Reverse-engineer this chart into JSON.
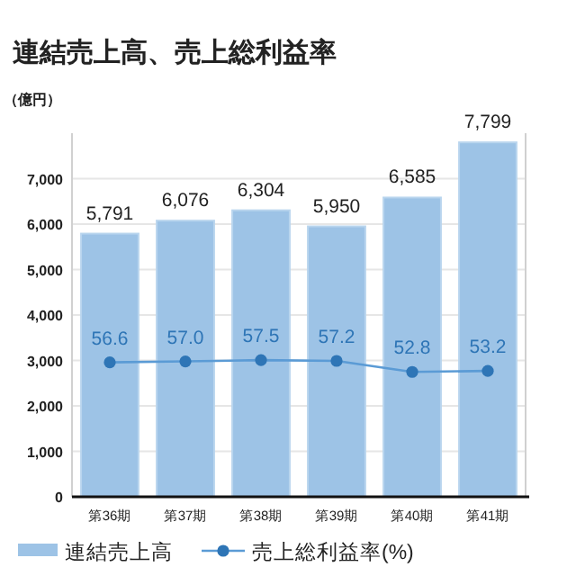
{
  "chart_data": {
    "type": "bar",
    "title": "連結売上高、売上総利益率",
    "ylabel": "（億円）",
    "categories": [
      "第36期",
      "第37期",
      "第38期",
      "第39期",
      "第40期",
      "第41期"
    ],
    "series": [
      {
        "name": "連結売上高",
        "color": "#9dc3e6",
        "values": [
          5791,
          6076,
          6304,
          5950,
          6585,
          7799
        ],
        "value_labels": [
          "5,791",
          "6,076",
          "6,304",
          "5,950",
          "6,585",
          "7,799"
        ]
      },
      {
        "name": "売上総利益率(%)",
        "type": "line",
        "axis": "y2",
        "color": "#2e75b6",
        "marker": "circle",
        "values": [
          56.6,
          57.0,
          57.5,
          57.2,
          52.8,
          53.2
        ],
        "value_labels": [
          "56.6",
          "57.0",
          "57.5",
          "57.2",
          "52.8",
          "53.2"
        ]
      }
    ],
    "ylim": [
      0,
      8000
    ],
    "yticks": [
      {
        "value": 0,
        "label": "0"
      },
      {
        "value": 1000,
        "label": "1,000"
      },
      {
        "value": 2000,
        "label": "2,000"
      },
      {
        "value": 3000,
        "label": "3,000"
      },
      {
        "value": 4000,
        "label": "4,000"
      },
      {
        "value": 5000,
        "label": "5,000"
      },
      {
        "value": 6000,
        "label": "6,000"
      },
      {
        "value": 7000,
        "label": "7,000"
      }
    ],
    "y2lim": [
      3,
      148
    ],
    "tick_labels": [
      "x",
      "y"
    ],
    "grid": "y",
    "legend": "bottom left"
  }
}
